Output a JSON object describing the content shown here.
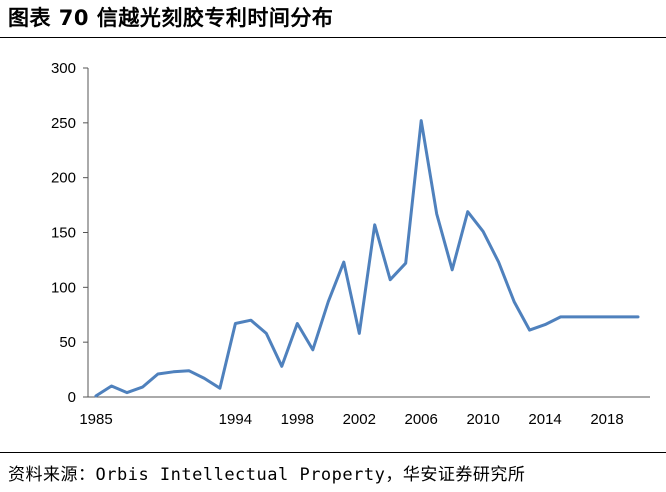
{
  "figure": {
    "title": "图表 70 信越光刻胶专利时间分布",
    "source": "资料来源：Orbis Intellectual Property，华安证券研究所"
  },
  "chart_data": {
    "type": "line",
    "title": "",
    "xlabel": "",
    "ylabel": "",
    "ylim": [
      0,
      300
    ],
    "yticks": [
      0,
      50,
      100,
      150,
      200,
      250,
      300
    ],
    "xlim": [
      1985,
      2020
    ],
    "xtick_labels": [
      "1985",
      "1994",
      "1998",
      "2002",
      "2006",
      "2010",
      "2014",
      "2018"
    ],
    "grid": false,
    "legend": "none",
    "line_color": "#4F81BD",
    "x": [
      1985,
      1986,
      1987,
      1988,
      1989,
      1990,
      1991,
      1992,
      1993,
      1994,
      1995,
      1996,
      1997,
      1998,
      1999,
      2000,
      2001,
      2002,
      2003,
      2004,
      2005,
      2006,
      2007,
      2008,
      2009,
      2010,
      2011,
      2012,
      2013,
      2014,
      2015,
      2016,
      2017,
      2018,
      2019,
      2020
    ],
    "values": [
      1,
      10,
      4,
      9,
      21,
      23,
      24,
      17,
      8,
      67,
      70,
      58,
      28,
      67,
      43,
      87,
      123,
      58,
      157,
      107,
      122,
      252,
      167,
      116,
      169,
      151,
      123,
      87,
      61,
      66,
      73,
      73,
      73,
      73,
      73,
      73
    ]
  }
}
